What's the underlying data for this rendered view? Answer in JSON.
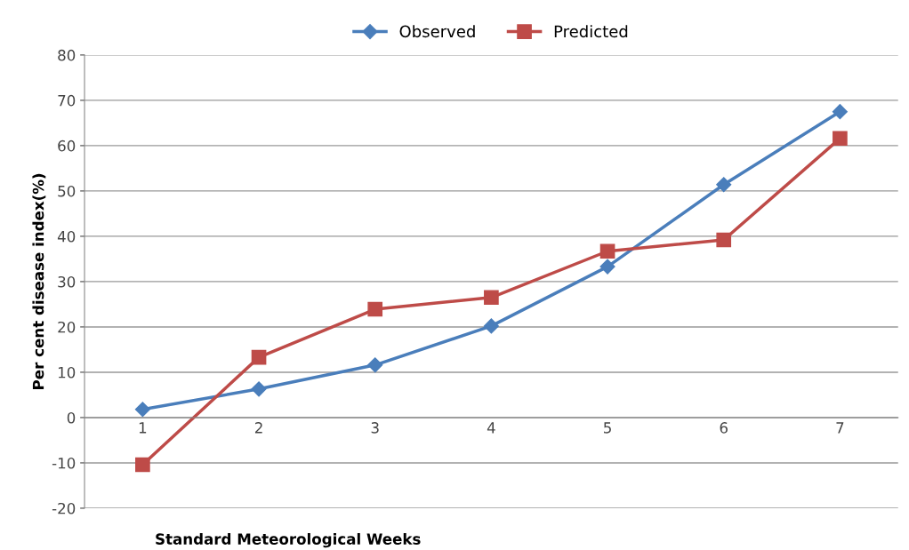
{
  "chart_data": {
    "type": "line",
    "xlabel": "Standard Meteorological Weeks",
    "ylabel": "Per cent disease index(%)",
    "categories": [
      "1",
      "2",
      "3",
      "4",
      "5",
      "6",
      "7"
    ],
    "series": [
      {
        "name": "Observed",
        "color": "#4a7ebb",
        "marker": "diamond",
        "values": [
          1.8,
          6.3,
          11.6,
          20.2,
          33.3,
          51.4,
          67.5
        ]
      },
      {
        "name": "Predicted",
        "color": "#be4b48",
        "marker": "square",
        "values": [
          -10.4,
          13.3,
          23.9,
          26.5,
          36.7,
          39.2,
          61.6
        ]
      }
    ],
    "ylim": [
      -20,
      80
    ],
    "yticks": [
      -20,
      -10,
      0,
      10,
      20,
      30,
      40,
      50,
      60,
      70,
      80
    ],
    "grid": "y",
    "legend": "top",
    "line_style": "solid"
  }
}
